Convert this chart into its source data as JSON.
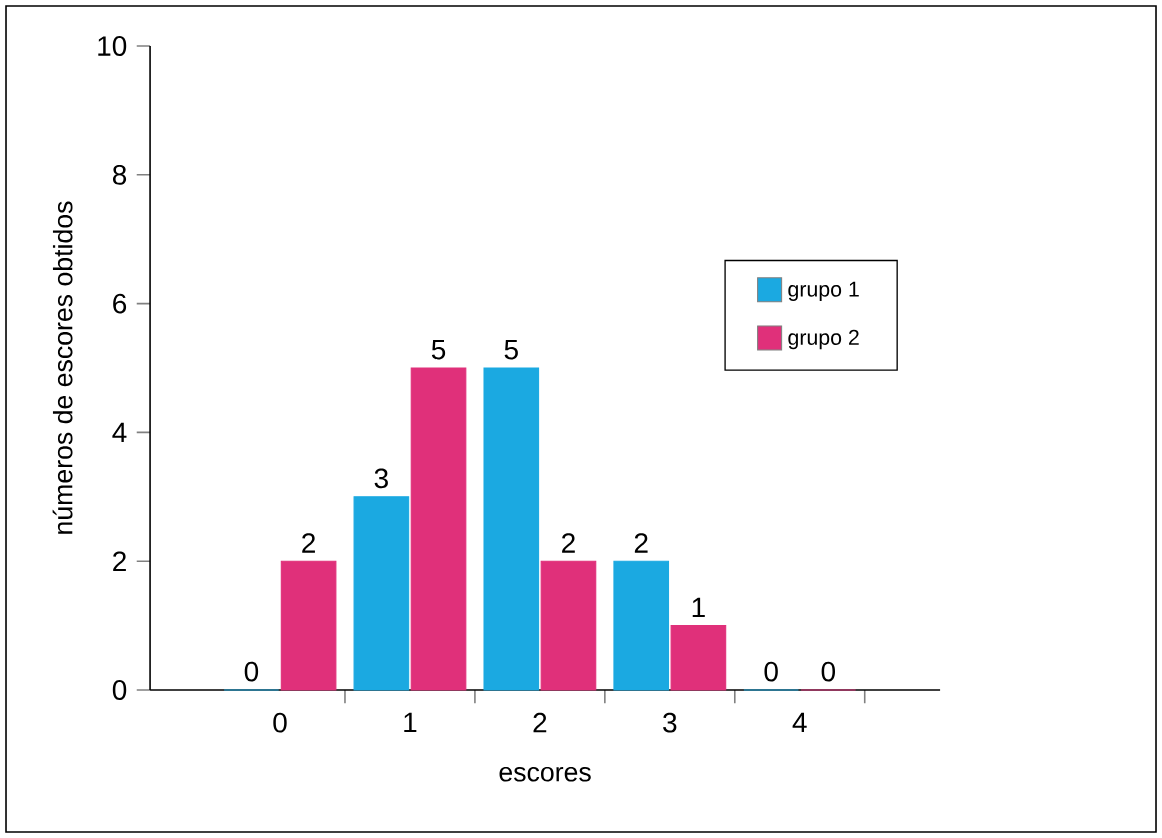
{
  "chart_data": {
    "type": "bar",
    "xlabel": "escores",
    "ylabel": "números de escores obtidos",
    "categories": [
      "0",
      "1",
      "2",
      "3",
      "4"
    ],
    "series": [
      {
        "name": "grupo 1",
        "color": "#1ba9e1",
        "values": [
          0,
          3,
          5,
          2,
          0
        ]
      },
      {
        "name": "grupo 2",
        "color": "#e0307a",
        "values": [
          2,
          5,
          2,
          1,
          0
        ]
      }
    ],
    "ylim": [
      0,
      10
    ],
    "yticks": [
      0,
      2,
      4,
      6,
      8,
      10
    ],
    "data_labels": true,
    "legend": "right",
    "grid": false
  }
}
